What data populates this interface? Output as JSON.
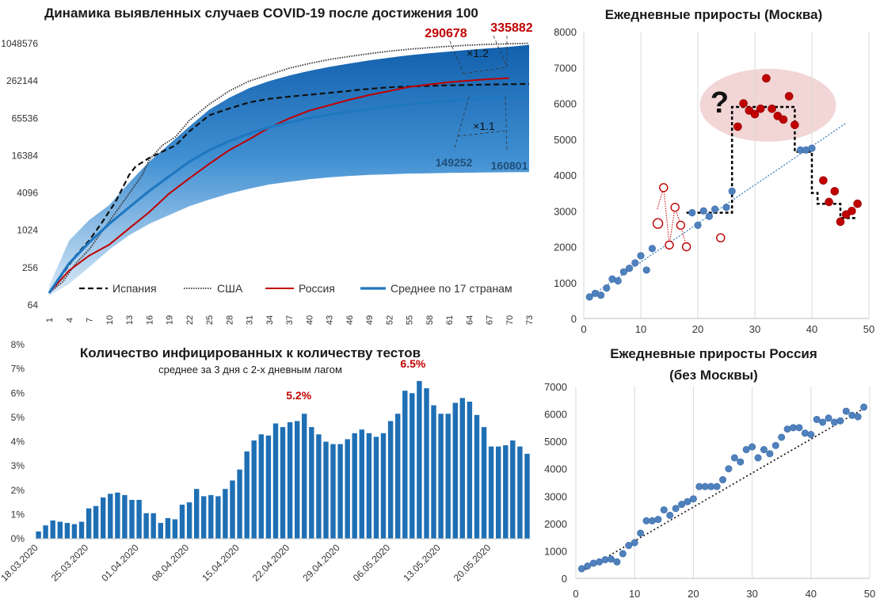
{
  "chart_data": [
    {
      "type": "line",
      "title": "Динамика выявленных случаев COVID-19 после достижения 100",
      "y_scale": "log2",
      "ylim": [
        64,
        1048576
      ],
      "y_ticks": [
        "64",
        "256",
        "1024",
        "4096",
        "16384",
        "65536",
        "262144",
        "1048576"
      ],
      "x_ticks": [
        "1",
        "4",
        "7",
        "10",
        "13",
        "16",
        "19",
        "22",
        "25",
        "28",
        "31",
        "34",
        "37",
        "40",
        "43",
        "46",
        "49",
        "52",
        "55",
        "58",
        "61",
        "64",
        "67",
        "70",
        "73"
      ],
      "xlim": [
        1,
        73
      ],
      "legend_position": "bottom",
      "series": [
        {
          "name": "Испания",
          "style": "dashed",
          "color": "#111111",
          "x": [
            1,
            3,
            5,
            7,
            9,
            11,
            13,
            14,
            16,
            18,
            20,
            22,
            25,
            28,
            31,
            34,
            37,
            40,
            44,
            48,
            52,
            56,
            60,
            64,
            68,
            73
          ],
          "values": [
            100,
            200,
            400,
            700,
            1400,
            3000,
            8000,
            11000,
            15000,
            19000,
            24000,
            40000,
            73000,
            94000,
            118000,
            135000,
            146000,
            157000,
            172000,
            191000,
            207000,
            215000,
            221000,
            226000,
            230000,
            235000
          ]
        },
        {
          "name": "США",
          "style": "dotted",
          "color": "#333333",
          "x": [
            1,
            3,
            5,
            7,
            9,
            11,
            13,
            15,
            16,
            18,
            20,
            22,
            25,
            28,
            31,
            34,
            37,
            40,
            43,
            46,
            49,
            52,
            55,
            58,
            61,
            64,
            67,
            70,
            73
          ],
          "values": [
            100,
            150,
            300,
            500,
            1000,
            2000,
            4000,
            8000,
            14000,
            24000,
            33000,
            60000,
            110000,
            180000,
            260000,
            330000,
            420000,
            500000,
            580000,
            650000,
            720000,
            790000,
            850000,
            900000,
            950000,
            990000,
            1020000,
            1040000,
            1060000
          ]
        },
        {
          "name": "Россия",
          "style": "solid",
          "color": "#c00000",
          "x": [
            1,
            4,
            7,
            10,
            13,
            16,
            19,
            22,
            25,
            28,
            31,
            34,
            37,
            40,
            43,
            46,
            49,
            52,
            55,
            58,
            61,
            64,
            67,
            70
          ],
          "values": [
            100,
            230,
            400,
            600,
            1100,
            2000,
            4000,
            7000,
            12000,
            20000,
            30000,
            46000,
            65000,
            87000,
            106000,
            130000,
            155000,
            180000,
            210000,
            230000,
            250000,
            265000,
            280000,
            290678
          ]
        },
        {
          "name": "Среднее по 17 странам",
          "style": "solid",
          "color": "#1f77c0",
          "x": [
            1,
            4,
            7,
            10,
            13,
            16,
            19,
            22,
            25,
            28,
            31,
            34,
            37,
            40,
            43,
            46,
            49,
            52,
            55,
            58,
            61,
            64,
            67,
            70,
            73
          ],
          "values": [
            100,
            300,
            650,
            1300,
            2400,
            4400,
            7600,
            13000,
            20000,
            28000,
            37000,
            47000,
            56000,
            66000,
            75000,
            84000,
            93000,
            102000,
            110000,
            118000,
            125000,
            132000,
            139000,
            145000,
            149252
          ]
        }
      ],
      "band": {
        "x": [
          1,
          4,
          7,
          10,
          13,
          16,
          19,
          22,
          25,
          28,
          31,
          34,
          37,
          40,
          43,
          46,
          49,
          52,
          55,
          58,
          61,
          64,
          67,
          70,
          73
        ],
        "upper": [
          130,
          700,
          1500,
          2600,
          6000,
          13000,
          25000,
          48000,
          90000,
          140000,
          200000,
          260000,
          320000,
          380000,
          440000,
          500000,
          560000,
          620000,
          680000,
          730000,
          780000,
          830000,
          880000,
          930000,
          1000000
        ],
        "lower": [
          90,
          140,
          260,
          500,
          850,
          1300,
          1800,
          2500,
          3200,
          4000,
          4800,
          5600,
          6200,
          6800,
          7300,
          7700,
          8000,
          8200,
          8400,
          8500,
          8600,
          8700,
          8800,
          8850,
          8900
        ]
      },
      "annotations": [
        "290678",
        "335882",
        "×1.2",
        "×1.1",
        "149252",
        "160801"
      ]
    },
    {
      "type": "scatter",
      "title": "Ежедневные приросты (Москва)",
      "xlim": [
        0,
        50
      ],
      "ylim": [
        0,
        8000
      ],
      "x_ticks": [
        "0",
        "10",
        "20",
        "30",
        "40",
        "50"
      ],
      "y_ticks": [
        "0",
        "1000",
        "2000",
        "3000",
        "4000",
        "5000",
        "6000",
        "7000",
        "8000"
      ],
      "grid": "x-vertical",
      "annotations": [
        "?"
      ],
      "series": [
        {
          "name": "",
          "marker": "filled-blue",
          "points": [
            [
              1,
              600
            ],
            [
              2,
              700
            ],
            [
              3,
              650
            ],
            [
              4,
              850
            ],
            [
              5,
              1100
            ],
            [
              6,
              1050
            ],
            [
              7,
              1300
            ],
            [
              8,
              1400
            ],
            [
              9,
              1550
            ],
            [
              10,
              1750
            ],
            [
              11,
              1350
            ],
            [
              12,
              1950
            ],
            [
              19,
              2950
            ],
            [
              20,
              2600
            ],
            [
              21,
              3000
            ],
            [
              22,
              2850
            ],
            [
              23,
              3050
            ],
            [
              25,
              3100
            ],
            [
              26,
              3550
            ],
            [
              38,
              4700
            ],
            [
              39,
              4700
            ],
            [
              40,
              4750
            ]
          ]
        },
        {
          "name": "",
          "marker": "hollow-red",
          "points": [
            [
              13,
              2650
            ],
            [
              14,
              3650
            ],
            [
              15,
              2050
            ],
            [
              16,
              3100
            ],
            [
              17,
              2600
            ],
            [
              18,
              2000
            ],
            [
              24,
              2250
            ]
          ]
        },
        {
          "name": "",
          "marker": "filled-red",
          "points": [
            [
              27,
              5350
            ],
            [
              28,
              6000
            ],
            [
              29,
              5800
            ],
            [
              30,
              5700
            ],
            [
              31,
              5850
            ],
            [
              32,
              6700
            ],
            [
              33,
              5850
            ],
            [
              34,
              5650
            ],
            [
              35,
              5550
            ],
            [
              36,
              6200
            ],
            [
              37,
              5400
            ],
            [
              42,
              3850
            ],
            [
              43,
              3250
            ],
            [
              44,
              3550
            ],
            [
              45,
              2700
            ],
            [
              46,
              2900
            ],
            [
              47,
              3000
            ],
            [
              48,
              3200
            ]
          ]
        }
      ],
      "step_line": {
        "x": [
          18,
          26,
          26,
          37,
          37,
          40,
          40,
          41,
          41,
          45,
          45,
          48
        ],
        "values": [
          2950,
          2950,
          5900,
          5900,
          4650,
          4650,
          3500,
          3500,
          3200,
          3200,
          2800,
          2800
        ]
      },
      "trend": {
        "x": [
          1,
          46
        ],
        "values": [
          600,
          5450
        ]
      }
    },
    {
      "type": "bar",
      "title": "Количество инфицированных к количеству тестов",
      "subtitle": "среднее за 3 дня с 2-х дневным лагом",
      "ylim": [
        0,
        8
      ],
      "y_ticks": [
        "0%",
        "1%",
        "2%",
        "3%",
        "4%",
        "5%",
        "6%",
        "7%",
        "8%"
      ],
      "x_ticks": [
        "18.03.2020",
        "25.03.2020",
        "01.04.2020",
        "08.04.2020",
        "15.04.2020",
        "22.04.2020",
        "29.04.2020",
        "06.05.2020",
        "13.05.2020",
        "20.05.2020"
      ],
      "x_tick_index": [
        0,
        7,
        14,
        21,
        28,
        35,
        42,
        49,
        56,
        63
      ],
      "annotations": [
        "5.2%",
        "6.5%"
      ],
      "values": [
        0.3,
        0.55,
        0.75,
        0.7,
        0.65,
        0.6,
        0.7,
        1.25,
        1.35,
        1.7,
        1.85,
        1.9,
        1.8,
        1.6,
        1.6,
        1.05,
        1.05,
        0.65,
        0.85,
        0.8,
        1.4,
        1.5,
        2.05,
        1.75,
        1.8,
        1.75,
        2.05,
        2.4,
        2.85,
        3.6,
        4.05,
        4.3,
        4.25,
        4.75,
        4.6,
        4.8,
        4.85,
        5.15,
        4.6,
        4.3,
        4.0,
        3.9,
        3.9,
        4.1,
        4.35,
        4.5,
        4.35,
        4.2,
        4.35,
        4.85,
        5.15,
        6.1,
        6.0,
        6.5,
        6.2,
        5.5,
        5.15,
        5.15,
        5.6,
        5.8,
        5.65,
        5.1,
        4.6,
        3.8,
        3.8,
        3.85,
        4.05,
        3.8,
        3.5
      ]
    },
    {
      "type": "scatter",
      "title": "Ежедневные приросты Россия",
      "subtitle": "(без Москвы)",
      "xlim": [
        0,
        50
      ],
      "ylim": [
        0,
        7000
      ],
      "x_ticks": [
        "0",
        "10",
        "20",
        "30",
        "40",
        "50"
      ],
      "y_ticks": [
        "0",
        "1000",
        "2000",
        "3000",
        "4000",
        "5000",
        "6000",
        "7000"
      ],
      "grid": "x-vertical",
      "series": [
        {
          "name": "",
          "marker": "filled-blue",
          "points": [
            [
              1,
              350
            ],
            [
              2,
              450
            ],
            [
              3,
              550
            ],
            [
              4,
              600
            ],
            [
              5,
              680
            ],
            [
              6,
              700
            ],
            [
              7,
              600
            ],
            [
              8,
              900
            ],
            [
              9,
              1200
            ],
            [
              10,
              1300
            ],
            [
              11,
              1650
            ],
            [
              12,
              2100
            ],
            [
              13,
              2100
            ],
            [
              14,
              2150
            ],
            [
              15,
              2500
            ],
            [
              16,
              2300
            ],
            [
              17,
              2550
            ],
            [
              18,
              2700
            ],
            [
              19,
              2800
            ],
            [
              20,
              2900
            ],
            [
              21,
              3350
            ],
            [
              22,
              3350
            ],
            [
              23,
              3350
            ],
            [
              24,
              3350
            ],
            [
              25,
              3600
            ],
            [
              26,
              4000
            ],
            [
              27,
              4400
            ],
            [
              28,
              4250
            ],
            [
              29,
              4700
            ],
            [
              30,
              4800
            ],
            [
              31,
              4400
            ],
            [
              32,
              4700
            ],
            [
              33,
              4550
            ],
            [
              34,
              4850
            ],
            [
              35,
              5150
            ],
            [
              36,
              5450
            ],
            [
              37,
              5500
            ],
            [
              38,
              5500
            ],
            [
              39,
              5300
            ],
            [
              40,
              5250
            ],
            [
              41,
              5800
            ],
            [
              42,
              5700
            ],
            [
              43,
              5850
            ],
            [
              44,
              5700
            ],
            [
              45,
              5750
            ],
            [
              46,
              6100
            ],
            [
              47,
              5950
            ],
            [
              48,
              5900
            ],
            [
              49,
              6250
            ]
          ]
        }
      ],
      "trend": {
        "x": [
          1,
          49
        ],
        "values": [
          250,
          6200
        ]
      }
    }
  ]
}
